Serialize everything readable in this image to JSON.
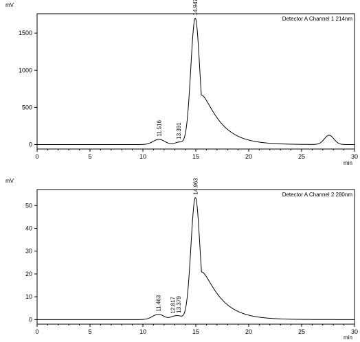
{
  "chart_data": [
    {
      "type": "line",
      "legend": "Detector A Channel 1 214nm",
      "ylabel": "mV",
      "xlabel": "min",
      "xlim": [
        0,
        30
      ],
      "ylim": [
        -60,
        1760
      ],
      "xticks": [
        "0",
        "5",
        "10",
        "15",
        "20",
        "25",
        "30"
      ],
      "yticks": [
        "0",
        "500",
        "1000",
        "1500"
      ],
      "peaks": [
        {
          "label": "11.516",
          "x": 11.516,
          "height": 70,
          "width": 0.55
        },
        {
          "label": "13.391",
          "x": 13.391,
          "height": 32,
          "width": 0.35
        },
        {
          "label": "14.947",
          "x": 14.947,
          "height": 1700,
          "width": 0.42,
          "tail": 1.6
        },
        {
          "label": "",
          "x": 27.6,
          "height": 125,
          "width": 0.45
        }
      ],
      "baseline": 0
    },
    {
      "type": "line",
      "legend": "Detector A Channel 2 280nm",
      "ylabel": "mV",
      "xlabel": "min",
      "xlim": [
        0,
        30
      ],
      "ylim": [
        -2,
        57
      ],
      "xticks": [
        "0",
        "5",
        "10",
        "15",
        "20",
        "25",
        "30"
      ],
      "yticks": [
        "0",
        "10",
        "20",
        "30",
        "40",
        "50"
      ],
      "peaks": [
        {
          "label": "11.463",
          "x": 11.463,
          "height": 2.3,
          "width": 0.55
        },
        {
          "label": "12.817",
          "x": 12.817,
          "height": 0.9,
          "width": 0.3
        },
        {
          "label": "13.379",
          "x": 13.379,
          "height": 1.5,
          "width": 0.35
        },
        {
          "label": "14.963",
          "x": 14.963,
          "height": 53.5,
          "width": 0.42,
          "tail": 1.6
        }
      ],
      "baseline": 0
    }
  ]
}
